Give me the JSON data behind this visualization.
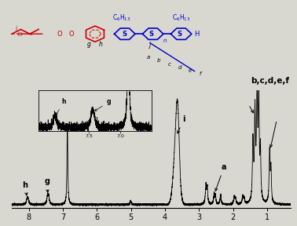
{
  "xlim": [
    8.5,
    0.3
  ],
  "ylim": [
    -0.03,
    1.05
  ],
  "xticks": [
    8.0,
    7.0,
    6.0,
    5.0,
    4.0,
    3.0,
    2.0,
    1.0
  ],
  "bg_color": "#d8d8d0",
  "line_color": "#000000",
  "figsize": [
    3.78,
    2.88
  ],
  "dpi": 100
}
